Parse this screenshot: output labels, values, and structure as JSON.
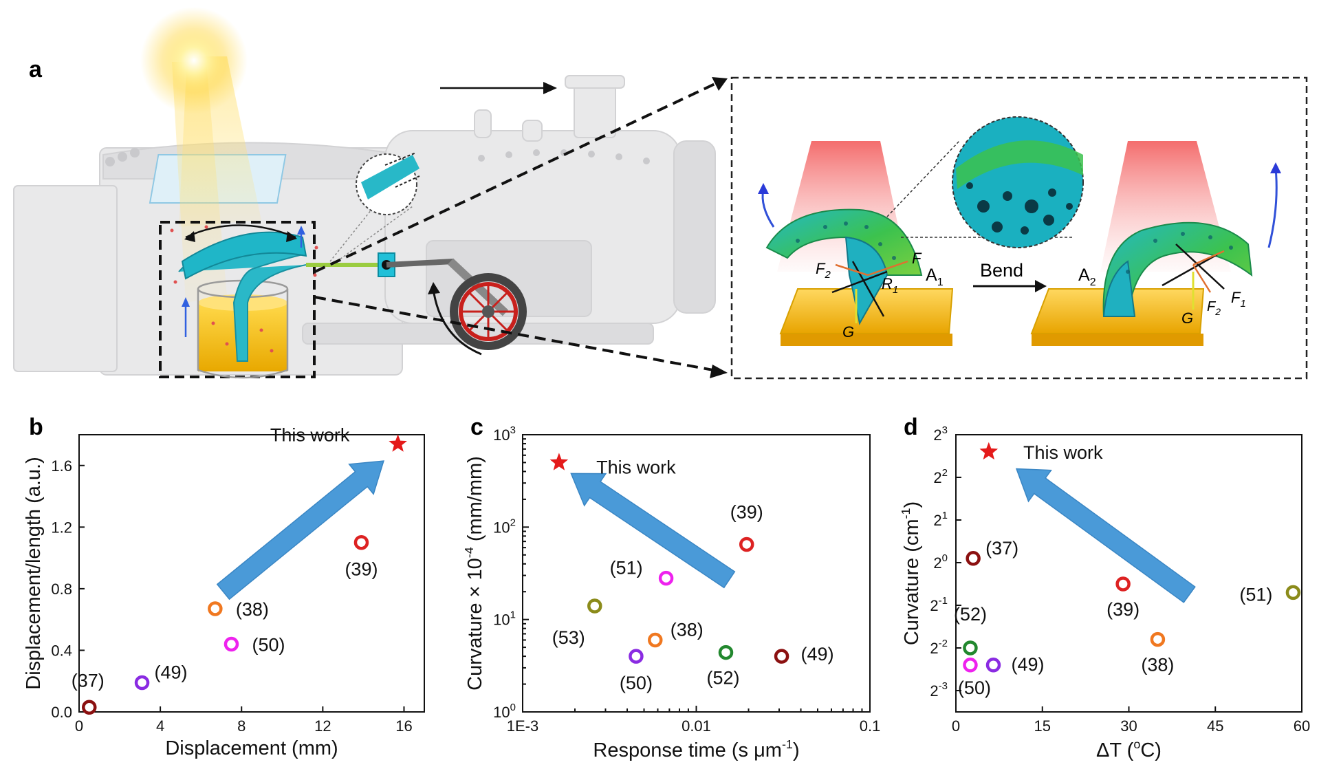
{
  "panel_a": {
    "letter": "a",
    "bend_label": "Bend",
    "labels": {
      "F": "F",
      "F2_main": "F",
      "F2_sub": "2",
      "R1_main": "R",
      "R1_sub": "1",
      "G": "G",
      "A1_main": "A",
      "A1_sub": "1",
      "A2_main": "A",
      "A2_sub": "2",
      "F1_main": "F",
      "F1_sub": "1",
      "F2b_main": "F",
      "F2b_sub": "2",
      "Gb": "G"
    },
    "colors": {
      "beaker_liquid": "#f2c200",
      "sponge": "#1fb6c8",
      "foam_green": "#3fc44a",
      "heat_red": "#f05a5a",
      "wheel_red": "#c8201c"
    }
  },
  "chart_data": [
    {
      "panel": "b",
      "type": "scatter",
      "xlabel": "Displacement (mm)",
      "ylabel": "Displacement/length (a.u.)",
      "xlim": [
        0,
        17
      ],
      "ylim": [
        0,
        1.8
      ],
      "xticks": [
        0,
        4,
        8,
        12,
        16
      ],
      "xtick_labels": [
        "0",
        "4",
        "8",
        "12",
        "16"
      ],
      "yticks": [
        0.0,
        0.4,
        0.8,
        1.2,
        1.6
      ],
      "ytick_labels": [
        "0.0",
        "0.4",
        "0.8",
        "1.2",
        "1.6"
      ],
      "points": [
        {
          "label": "(37)",
          "x": 0.5,
          "y": 0.03,
          "color": "#8b1010"
        },
        {
          "label": "(49)",
          "x": 3.1,
          "y": 0.19,
          "color": "#8a2be2"
        },
        {
          "label": "(50)",
          "x": 7.5,
          "y": 0.44,
          "color": "#ee22ee"
        },
        {
          "label": "(38)",
          "x": 6.7,
          "y": 0.67,
          "color": "#f07820"
        },
        {
          "label": "(39)",
          "x": 13.9,
          "y": 1.1,
          "color": "#dd2222"
        }
      ],
      "star": {
        "label": "This work",
        "x": 15.7,
        "y": 1.74,
        "color": "#e41a1a"
      },
      "arrow_color": "#4a9ad8"
    },
    {
      "panel": "c",
      "type": "scatter",
      "xlabel_main": "Response time (s μm",
      "xlabel_sup": "-1",
      "xlabel_end": ")",
      "ylabel_main": "Curvature × 10",
      "ylabel_sup": "-4",
      "ylabel_end": " (mm/mm)",
      "xscale": "log",
      "yscale": "log",
      "xlim": [
        0.001,
        0.1
      ],
      "ylim": [
        1,
        1000
      ],
      "xtick_labels": [
        "1E-3",
        "0.01",
        "0.1"
      ],
      "ytick_labels": [
        {
          "base": "10",
          "exp": "0"
        },
        {
          "base": "10",
          "exp": "1"
        },
        {
          "base": "10",
          "exp": "2"
        },
        {
          "base": "10",
          "exp": "3"
        }
      ],
      "points": [
        {
          "label": "(53)",
          "x": 0.0026,
          "y": 14,
          "color": "#8b8b1a"
        },
        {
          "label": "(51)",
          "x": 0.0067,
          "y": 28,
          "color": "#ee22ee"
        },
        {
          "label": "(50)",
          "x": 0.0045,
          "y": 4,
          "color": "#8a2be2"
        },
        {
          "label": "(38)",
          "x": 0.0058,
          "y": 6,
          "color": "#f07820"
        },
        {
          "label": "(52)",
          "x": 0.0148,
          "y": 4.4,
          "color": "#22882e"
        },
        {
          "label": "(39)",
          "x": 0.0195,
          "y": 65,
          "color": "#dd2222"
        },
        {
          "label": "(49)",
          "x": 0.031,
          "y": 4,
          "color": "#8b1010"
        }
      ],
      "star": {
        "label": "This work",
        "x": 0.00162,
        "y": 500,
        "color": "#e41a1a"
      },
      "arrow_color": "#4a9ad8"
    },
    {
      "panel": "d",
      "type": "scatter",
      "xlabel_main": "ΔT (",
      "xlabel_sup": "o",
      "xlabel_end": "C)",
      "ylabel_main": "Curvature (cm",
      "ylabel_sup": "-1",
      "ylabel_end": ")",
      "yscale": "log2",
      "xlim": [
        0,
        60
      ],
      "ylim_exp": [
        -3.5,
        3
      ],
      "xticks": [
        0,
        15,
        30,
        45,
        60
      ],
      "xtick_labels": [
        "0",
        "15",
        "30",
        "45",
        "60"
      ],
      "ytick_labels": [
        {
          "base": "2",
          "exp": "-3"
        },
        {
          "base": "2",
          "exp": "-2"
        },
        {
          "base": "2",
          "exp": "-1"
        },
        {
          "base": "2",
          "exp": "0"
        },
        {
          "base": "2",
          "exp": "1"
        },
        {
          "base": "2",
          "exp": "2"
        },
        {
          "base": "2",
          "exp": "3"
        }
      ],
      "points": [
        {
          "label": "(37)",
          "x": 3,
          "y_exp": 0.1,
          "color": "#8b1010"
        },
        {
          "label": "(39)",
          "x": 29,
          "y_exp": -0.5,
          "color": "#dd2222"
        },
        {
          "label": "(51)",
          "x": 58.5,
          "y_exp": -0.7,
          "color": "#8b8b1a"
        },
        {
          "label": "(52)",
          "x": 2.5,
          "y_exp": -2.0,
          "color": "#22882e"
        },
        {
          "label": "(38)",
          "x": 35,
          "y_exp": -1.8,
          "color": "#f07820"
        },
        {
          "label": "(50)",
          "x": 2.5,
          "y_exp": -2.4,
          "color": "#ee22ee"
        },
        {
          "label": "(49)",
          "x": 6.5,
          "y_exp": -2.4,
          "color": "#8a2be2"
        }
      ],
      "star": {
        "label": "This work",
        "x": 5.7,
        "y_exp": 2.6,
        "color": "#e41a1a"
      },
      "arrow_color": "#4a9ad8"
    }
  ]
}
